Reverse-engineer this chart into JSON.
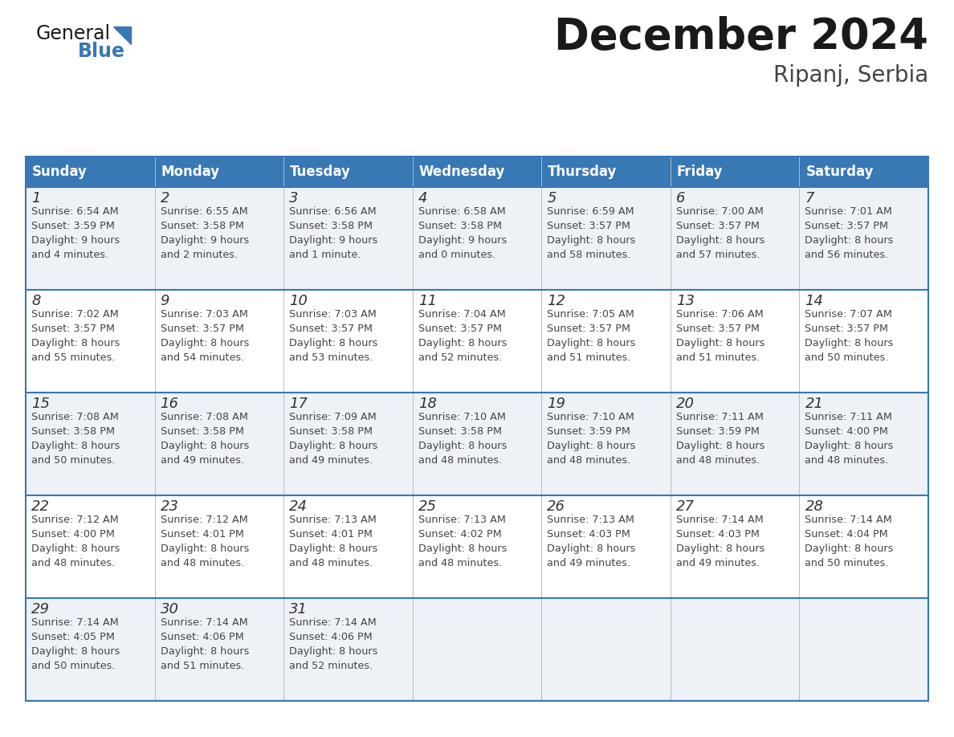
{
  "title": "December 2024",
  "subtitle": "Ripanj, Serbia",
  "header_color": "#3878b4",
  "header_text_color": "#ffffff",
  "day_names": [
    "Sunday",
    "Monday",
    "Tuesday",
    "Wednesday",
    "Thursday",
    "Friday",
    "Saturday"
  ],
  "row_bg_odd": "#eef2f7",
  "row_bg_even": "#ffffff",
  "border_color": "#3878b4",
  "separator_color": "#3878b4",
  "text_color": "#444444",
  "number_color": "#333333",
  "days": [
    {
      "day": 1,
      "col": 0,
      "row": 0,
      "sunrise": "6:54 AM",
      "sunset": "3:59 PM",
      "daylight": "9 hours and 4 minutes."
    },
    {
      "day": 2,
      "col": 1,
      "row": 0,
      "sunrise": "6:55 AM",
      "sunset": "3:58 PM",
      "daylight": "9 hours and 2 minutes."
    },
    {
      "day": 3,
      "col": 2,
      "row": 0,
      "sunrise": "6:56 AM",
      "sunset": "3:58 PM",
      "daylight": "9 hours and 1 minute."
    },
    {
      "day": 4,
      "col": 3,
      "row": 0,
      "sunrise": "6:58 AM",
      "sunset": "3:58 PM",
      "daylight": "9 hours and 0 minutes."
    },
    {
      "day": 5,
      "col": 4,
      "row": 0,
      "sunrise": "6:59 AM",
      "sunset": "3:57 PM",
      "daylight": "8 hours and 58 minutes."
    },
    {
      "day": 6,
      "col": 5,
      "row": 0,
      "sunrise": "7:00 AM",
      "sunset": "3:57 PM",
      "daylight": "8 hours and 57 minutes."
    },
    {
      "day": 7,
      "col": 6,
      "row": 0,
      "sunrise": "7:01 AM",
      "sunset": "3:57 PM",
      "daylight": "8 hours and 56 minutes."
    },
    {
      "day": 8,
      "col": 0,
      "row": 1,
      "sunrise": "7:02 AM",
      "sunset": "3:57 PM",
      "daylight": "8 hours and 55 minutes."
    },
    {
      "day": 9,
      "col": 1,
      "row": 1,
      "sunrise": "7:03 AM",
      "sunset": "3:57 PM",
      "daylight": "8 hours and 54 minutes."
    },
    {
      "day": 10,
      "col": 2,
      "row": 1,
      "sunrise": "7:03 AM",
      "sunset": "3:57 PM",
      "daylight": "8 hours and 53 minutes."
    },
    {
      "day": 11,
      "col": 3,
      "row": 1,
      "sunrise": "7:04 AM",
      "sunset": "3:57 PM",
      "daylight": "8 hours and 52 minutes."
    },
    {
      "day": 12,
      "col": 4,
      "row": 1,
      "sunrise": "7:05 AM",
      "sunset": "3:57 PM",
      "daylight": "8 hours and 51 minutes."
    },
    {
      "day": 13,
      "col": 5,
      "row": 1,
      "sunrise": "7:06 AM",
      "sunset": "3:57 PM",
      "daylight": "8 hours and 51 minutes."
    },
    {
      "day": 14,
      "col": 6,
      "row": 1,
      "sunrise": "7:07 AM",
      "sunset": "3:57 PM",
      "daylight": "8 hours and 50 minutes."
    },
    {
      "day": 15,
      "col": 0,
      "row": 2,
      "sunrise": "7:08 AM",
      "sunset": "3:58 PM",
      "daylight": "8 hours and 50 minutes."
    },
    {
      "day": 16,
      "col": 1,
      "row": 2,
      "sunrise": "7:08 AM",
      "sunset": "3:58 PM",
      "daylight": "8 hours and 49 minutes."
    },
    {
      "day": 17,
      "col": 2,
      "row": 2,
      "sunrise": "7:09 AM",
      "sunset": "3:58 PM",
      "daylight": "8 hours and 49 minutes."
    },
    {
      "day": 18,
      "col": 3,
      "row": 2,
      "sunrise": "7:10 AM",
      "sunset": "3:58 PM",
      "daylight": "8 hours and 48 minutes."
    },
    {
      "day": 19,
      "col": 4,
      "row": 2,
      "sunrise": "7:10 AM",
      "sunset": "3:59 PM",
      "daylight": "8 hours and 48 minutes."
    },
    {
      "day": 20,
      "col": 5,
      "row": 2,
      "sunrise": "7:11 AM",
      "sunset": "3:59 PM",
      "daylight": "8 hours and 48 minutes."
    },
    {
      "day": 21,
      "col": 6,
      "row": 2,
      "sunrise": "7:11 AM",
      "sunset": "4:00 PM",
      "daylight": "8 hours and 48 minutes."
    },
    {
      "day": 22,
      "col": 0,
      "row": 3,
      "sunrise": "7:12 AM",
      "sunset": "4:00 PM",
      "daylight": "8 hours and 48 minutes."
    },
    {
      "day": 23,
      "col": 1,
      "row": 3,
      "sunrise": "7:12 AM",
      "sunset": "4:01 PM",
      "daylight": "8 hours and 48 minutes."
    },
    {
      "day": 24,
      "col": 2,
      "row": 3,
      "sunrise": "7:13 AM",
      "sunset": "4:01 PM",
      "daylight": "8 hours and 48 minutes."
    },
    {
      "day": 25,
      "col": 3,
      "row": 3,
      "sunrise": "7:13 AM",
      "sunset": "4:02 PM",
      "daylight": "8 hours and 48 minutes."
    },
    {
      "day": 26,
      "col": 4,
      "row": 3,
      "sunrise": "7:13 AM",
      "sunset": "4:03 PM",
      "daylight": "8 hours and 49 minutes."
    },
    {
      "day": 27,
      "col": 5,
      "row": 3,
      "sunrise": "7:14 AM",
      "sunset": "4:03 PM",
      "daylight": "8 hours and 49 minutes."
    },
    {
      "day": 28,
      "col": 6,
      "row": 3,
      "sunrise": "7:14 AM",
      "sunset": "4:04 PM",
      "daylight": "8 hours and 50 minutes."
    },
    {
      "day": 29,
      "col": 0,
      "row": 4,
      "sunrise": "7:14 AM",
      "sunset": "4:05 PM",
      "daylight": "8 hours and 50 minutes."
    },
    {
      "day": 30,
      "col": 1,
      "row": 4,
      "sunrise": "7:14 AM",
      "sunset": "4:06 PM",
      "daylight": "8 hours and 51 minutes."
    },
    {
      "day": 31,
      "col": 2,
      "row": 4,
      "sunrise": "7:14 AM",
      "sunset": "4:06 PM",
      "daylight": "8 hours and 52 minutes."
    }
  ]
}
